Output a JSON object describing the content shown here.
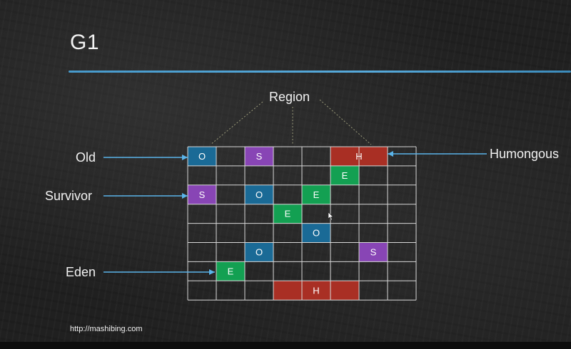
{
  "title": "G1",
  "url": "http://mashibing.com",
  "labels": {
    "region": "Region",
    "old": "Old",
    "survivor": "Survivor",
    "eden": "Eden",
    "humongous": "Humongous"
  },
  "colors": {
    "old": "#1a6a96",
    "survivor": "#8845b5",
    "eden": "#13a052",
    "humongous": "#a92f24",
    "grid": "#d8d8d8",
    "arrow": "#5ab4ea",
    "dotted": "#9a9a7a"
  },
  "grid": {
    "cols": 8,
    "rows": 8
  },
  "regions": [
    {
      "type": "old",
      "label": "O",
      "row": 0,
      "col": 0,
      "span": 1
    },
    {
      "type": "survivor",
      "label": "S",
      "row": 0,
      "col": 2,
      "span": 1
    },
    {
      "type": "humongous",
      "label": "H",
      "row": 0,
      "col": 5,
      "span": 2
    },
    {
      "type": "eden",
      "label": "E",
      "row": 1,
      "col": 5,
      "span": 1
    },
    {
      "type": "survivor",
      "label": "S",
      "row": 2,
      "col": 0,
      "span": 1
    },
    {
      "type": "old",
      "label": "O",
      "row": 2,
      "col": 2,
      "span": 1
    },
    {
      "type": "eden",
      "label": "E",
      "row": 2,
      "col": 4,
      "span": 1
    },
    {
      "type": "eden",
      "label": "E",
      "row": 3,
      "col": 3,
      "span": 1
    },
    {
      "type": "old",
      "label": "O",
      "row": 4,
      "col": 4,
      "span": 1
    },
    {
      "type": "old",
      "label": "O",
      "row": 5,
      "col": 2,
      "span": 1
    },
    {
      "type": "survivor",
      "label": "S",
      "row": 5,
      "col": 6,
      "span": 1
    },
    {
      "type": "eden",
      "label": "E",
      "row": 6,
      "col": 1,
      "span": 1
    },
    {
      "type": "humongous",
      "label": "H",
      "row": 7,
      "col": 3,
      "span": 3
    }
  ]
}
